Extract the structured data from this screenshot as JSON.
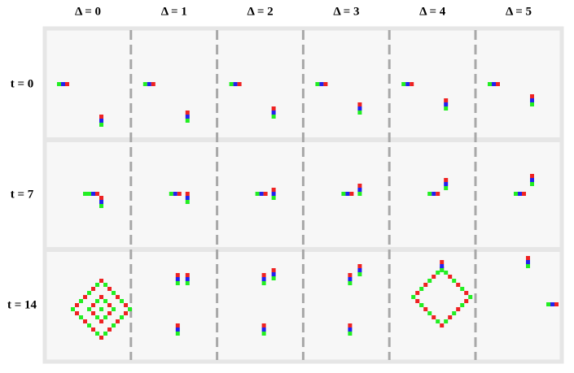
{
  "figure": {
    "columns": [
      "Δ = 0",
      "Δ = 1",
      "Δ = 2",
      "Δ = 3",
      "Δ = 4",
      "Δ = 5"
    ],
    "rows": [
      "t = 0",
      "t = 7",
      "t = 14"
    ]
  }
}
